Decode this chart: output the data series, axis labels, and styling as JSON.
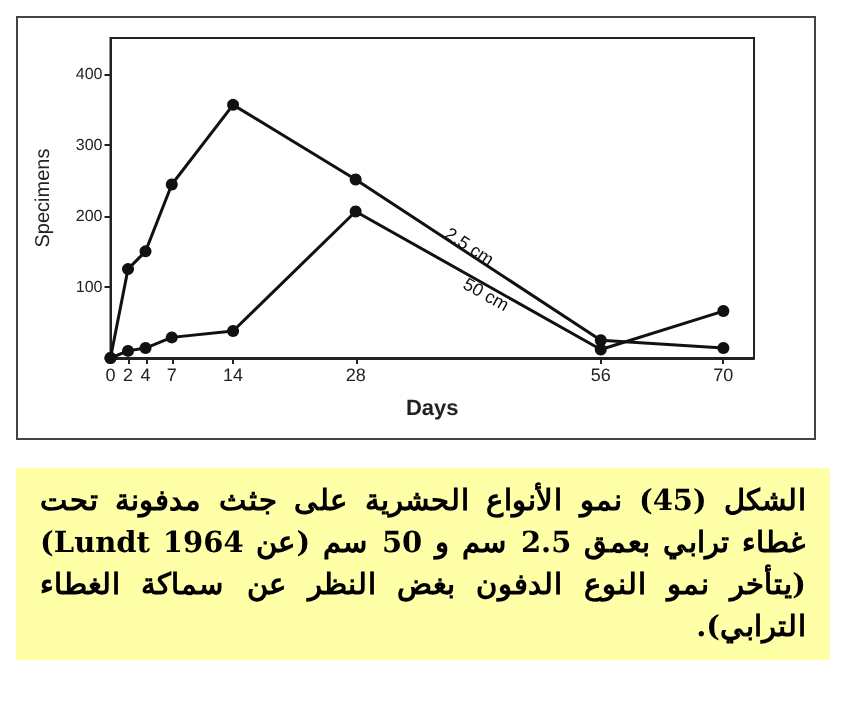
{
  "chart_data": {
    "type": "line",
    "xlabel": "Days",
    "ylabel": "Specimens",
    "x": [
      0,
      2,
      4,
      7,
      14,
      28,
      56,
      70
    ],
    "series": [
      {
        "name": "2.5 cm",
        "color": "#111111",
        "values": [
          0,
          125,
          150,
          244,
          356,
          251,
          25,
          14
        ]
      },
      {
        "name": "50 cm",
        "color": "#111111",
        "values": [
          0,
          10,
          14,
          29,
          38,
          206,
          12,
          66
        ]
      }
    ],
    "xlim": [
      0,
      73.5
    ],
    "xticks": [
      0,
      2,
      4,
      7,
      14,
      28,
      56,
      70
    ],
    "ylim": [
      0,
      450
    ],
    "yticks": [
      100,
      200,
      300,
      400
    ],
    "grid": false,
    "legend": false,
    "marker": "circle",
    "line_style": "solid",
    "annotations": [
      "الشكل (45) نمو الأنواع الحشرية على جثث مدفونة تحت غطاء ترابي بعمق 2.5 سم و 50 سم (عن Lundt 1964) (يتأخر نمو النوع الدفون بغض النظر عن سماكة الغطاء الترابي)."
    ]
  }
}
